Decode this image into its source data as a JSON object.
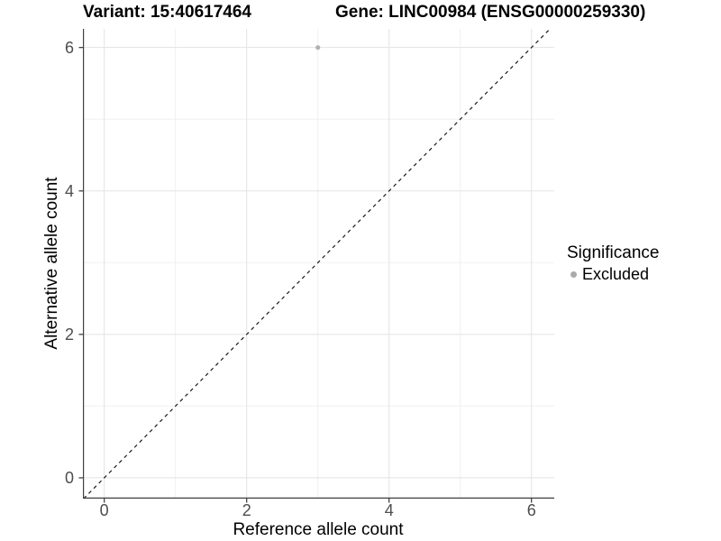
{
  "colors": {
    "background": "#ffffff",
    "axis_line": "#404040",
    "tick_mark": "#333333",
    "grid_major": "#e3e3e3",
    "grid_minor": "#f0f0f0",
    "tick_text": "#4d4d4d",
    "point": "#b1b1b1",
    "reference_line": "#1a1a1a"
  },
  "chart_data": {
    "type": "scatter",
    "titles": {
      "left": "Variant: 15:40617464",
      "right": "Gene: LINC00984 (ENSG00000259330)"
    },
    "xlabel": "Reference allele count",
    "ylabel": "Alternative allele count",
    "xlim": [
      -0.3,
      6.32
    ],
    "ylim": [
      -0.29,
      6.26
    ],
    "x_ticks": [
      0,
      2,
      4,
      6
    ],
    "y_ticks": [
      0,
      2,
      4,
      6
    ],
    "x_minor_ticks": [
      1,
      3,
      5
    ],
    "y_minor_ticks": [
      1,
      3,
      5
    ],
    "grid": true,
    "series": [
      {
        "name": "Excluded",
        "color": "#b1b1b1",
        "marker": "circle",
        "points": [
          {
            "x": 3,
            "y": 6
          }
        ]
      }
    ],
    "reference_line": {
      "type": "identity",
      "equation": "y = x",
      "style": "dashed",
      "color": "#1a1a1a"
    },
    "legend": {
      "title": "Significance",
      "position": "right",
      "items": [
        {
          "label": "Excluded",
          "color": "#aaaaaa",
          "marker": "circle"
        }
      ]
    }
  }
}
